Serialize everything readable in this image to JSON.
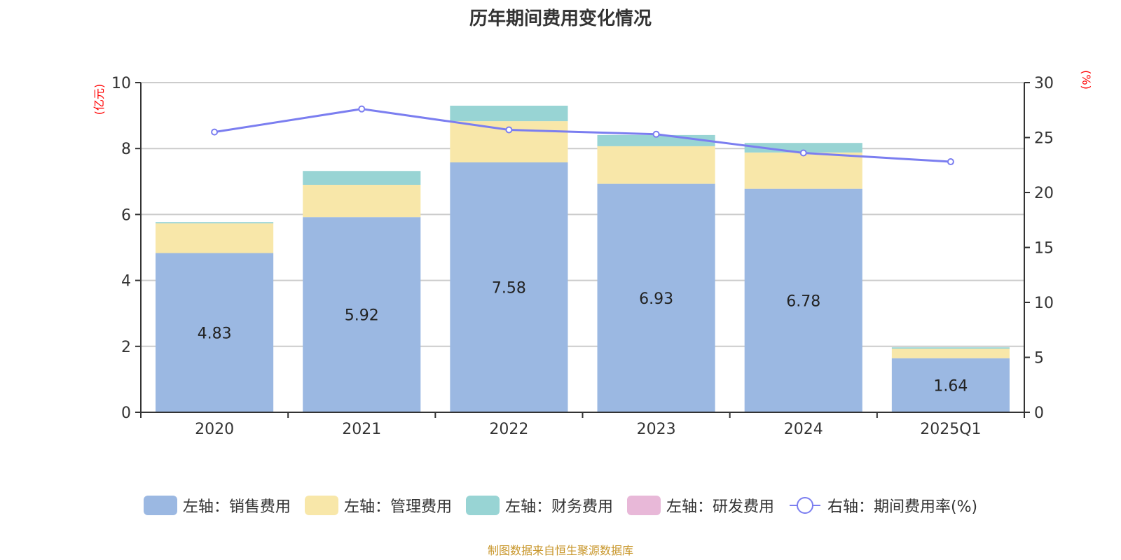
{
  "chart_data": {
    "type": "bar",
    "title": "历年期间费用变化情况",
    "categories": [
      "2020",
      "2021",
      "2022",
      "2023",
      "2024",
      "2025Q1"
    ],
    "stacked": true,
    "left_axis": {
      "unit": "(亿元)",
      "ylim": [
        0,
        10
      ],
      "ticks": [
        "0",
        "2",
        "4",
        "6",
        "8",
        "10"
      ],
      "tick_values": [
        0,
        2,
        4,
        6,
        8,
        10
      ]
    },
    "right_axis": {
      "unit": "(%)",
      "ylim": [
        0,
        30
      ],
      "ticks": [
        "0",
        "5",
        "10",
        "15",
        "20",
        "25",
        "30"
      ],
      "tick_values": [
        0,
        5,
        10,
        15,
        20,
        25,
        30
      ]
    },
    "grid": true,
    "legend_position": "bottom",
    "series": [
      {
        "name": "左轴：销售费用",
        "type": "bar",
        "axis": "left",
        "color": "#9bb8e2",
        "values": [
          4.83,
          5.92,
          7.58,
          6.93,
          6.78,
          1.64
        ],
        "labels": [
          "4.83",
          "5.92",
          "7.58",
          "6.93",
          "6.78",
          "1.64"
        ]
      },
      {
        "name": "左轴：管理费用",
        "type": "bar",
        "axis": "left",
        "color": "#f8e7a9",
        "values": [
          0.9,
          0.98,
          1.25,
          1.14,
          1.1,
          0.29
        ]
      },
      {
        "name": "左轴：财务费用",
        "type": "bar",
        "axis": "left",
        "color": "#98d4d4",
        "values": [
          0.04,
          0.42,
          0.47,
          0.34,
          0.29,
          0.04
        ]
      },
      {
        "name": "左轴：研发费用",
        "type": "bar",
        "axis": "left",
        "color": "#e8b8d8",
        "values": [
          0,
          0,
          0,
          0,
          0,
          0
        ]
      },
      {
        "name": "右轴：期间费用率(%)",
        "type": "line",
        "axis": "right",
        "color": "#7b7ef0",
        "values": [
          25.5,
          27.6,
          25.7,
          25.3,
          23.6,
          22.8
        ]
      }
    ]
  },
  "footer": {
    "source": "制图数据来自恒生聚源数据库"
  }
}
